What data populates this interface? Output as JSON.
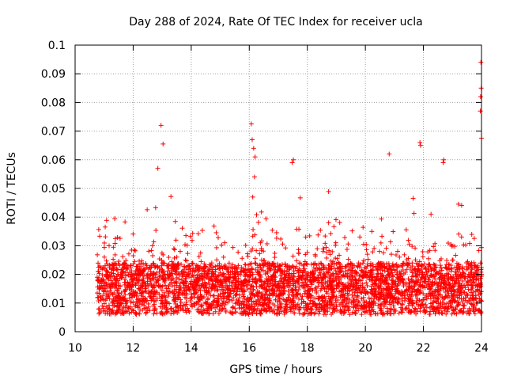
{
  "chart_data": {
    "type": "scatter",
    "title": "Day 288 of 2024, Rate Of TEC Index for receiver ucla",
    "xlabel": "GPS time / hours",
    "ylabel": "ROTI / TECUs",
    "xlim": [
      10,
      24
    ],
    "ylim": [
      0,
      0.1
    ],
    "x_ticks": [
      10,
      12,
      14,
      16,
      18,
      20,
      22,
      24
    ],
    "x_tick_labels": [
      "10",
      "12",
      "14",
      "16",
      "18",
      "20",
      "22",
      "24"
    ],
    "y_ticks": [
      0,
      0.01,
      0.02,
      0.03,
      0.04,
      0.05,
      0.06,
      0.07,
      0.08,
      0.09,
      0.1
    ],
    "y_tick_labels": [
      "0",
      "0.01",
      "0.02",
      "0.03",
      "0.04",
      "0.05",
      "0.06",
      "0.07",
      "0.08",
      "0.09",
      "0.1"
    ],
    "grid": true,
    "marker": "+",
    "color": "#ff0000",
    "series": [
      {
        "name": "ROTI",
        "x": [
          10.8,
          10.9,
          11.0,
          11.1,
          11.2,
          11.3,
          11.4,
          11.5,
          11.6,
          11.7,
          11.8,
          11.9,
          12.0,
          12.1,
          12.2,
          12.3,
          12.4,
          12.5,
          12.6,
          12.7,
          12.8,
          12.9,
          13.0,
          13.1,
          13.2,
          13.3,
          13.4,
          13.5,
          13.6,
          13.7,
          13.8,
          13.9,
          14.0,
          14.1,
          14.2,
          14.3,
          14.4,
          14.5,
          14.6,
          14.7,
          14.8,
          14.9,
          15.0,
          15.1,
          15.2,
          15.3,
          15.4,
          15.5,
          15.6,
          15.7,
          15.8,
          15.9,
          16.0,
          16.1,
          16.2,
          16.3,
          16.4,
          16.5,
          16.6,
          16.7,
          16.8,
          16.9,
          17.0,
          17.1,
          17.2,
          17.3,
          17.4,
          17.5,
          17.6,
          17.7,
          17.8,
          17.9,
          18.0,
          18.1,
          18.2,
          18.3,
          18.4,
          18.5,
          18.6,
          18.7,
          18.8,
          18.9,
          19.0,
          19.1,
          19.2,
          19.3,
          19.4,
          19.5,
          19.6,
          19.7,
          19.8,
          19.9,
          20.0,
          20.1,
          20.2,
          20.3,
          20.4,
          20.5,
          20.6,
          20.7,
          20.8,
          20.9,
          21.0,
          21.1,
          21.2,
          21.3,
          21.4,
          21.5,
          21.6,
          21.7,
          21.8,
          21.9,
          22.0,
          22.1,
          22.2,
          22.3,
          22.4,
          22.5,
          22.6,
          22.7,
          22.8,
          22.9,
          23.0,
          23.1,
          23.2,
          23.3,
          23.4,
          23.5,
          23.6,
          23.7,
          23.8,
          23.9,
          24.0,
          12.96,
          13.03,
          12.85,
          16.07,
          16.1,
          16.15,
          16.2,
          16.18,
          16.12,
          17.52,
          17.48,
          20.82,
          21.88,
          21.9,
          22.7,
          22.68,
          23.98,
          23.99,
          23.97,
          23.96,
          24.0
        ],
        "y": [
          0.012,
          0.018,
          0.014,
          0.021,
          0.016,
          0.013,
          0.017,
          0.015,
          0.019,
          0.014,
          0.016,
          0.02,
          0.018,
          0.017,
          0.015,
          0.016,
          0.022,
          0.019,
          0.018,
          0.016,
          0.017,
          0.021,
          0.024,
          0.02,
          0.019,
          0.018,
          0.022,
          0.017,
          0.016,
          0.021,
          0.025,
          0.02,
          0.019,
          0.018,
          0.017,
          0.016,
          0.018,
          0.019,
          0.017,
          0.015,
          0.016,
          0.017,
          0.018,
          0.02,
          0.019,
          0.018,
          0.017,
          0.016,
          0.015,
          0.016,
          0.017,
          0.016,
          0.018,
          0.022,
          0.024,
          0.02,
          0.018,
          0.017,
          0.016,
          0.017,
          0.018,
          0.019,
          0.017,
          0.018,
          0.02,
          0.021,
          0.019,
          0.018,
          0.017,
          0.018,
          0.019,
          0.016,
          0.018,
          0.019,
          0.02,
          0.018,
          0.017,
          0.016,
          0.015,
          0.016,
          0.015,
          0.014,
          0.015,
          0.016,
          0.015,
          0.016,
          0.017,
          0.018,
          0.016,
          0.017,
          0.018,
          0.019,
          0.02,
          0.019,
          0.018,
          0.017,
          0.016,
          0.017,
          0.018,
          0.019,
          0.02,
          0.018,
          0.017,
          0.016,
          0.017,
          0.018,
          0.017,
          0.016,
          0.015,
          0.016,
          0.017,
          0.018,
          0.019,
          0.016,
          0.015,
          0.016,
          0.017,
          0.016,
          0.015,
          0.017,
          0.016,
          0.015,
          0.016,
          0.017,
          0.016,
          0.015,
          0.016,
          0.017,
          0.018,
          0.017,
          0.016,
          0.018,
          0.02,
          0.072,
          0.0655,
          0.057,
          0.0725,
          0.067,
          0.064,
          0.061,
          0.054,
          0.047,
          0.06,
          0.059,
          0.062,
          0.066,
          0.065,
          0.06,
          0.059,
          0.094,
          0.085,
          0.082,
          0.077,
          0.0675
        ]
      }
    ],
    "scatter_density_note": "background cloud of many '+' markers between x 10.8 and 24, mostly y 0.005 to 0.03 with spikes up to 0.05"
  }
}
